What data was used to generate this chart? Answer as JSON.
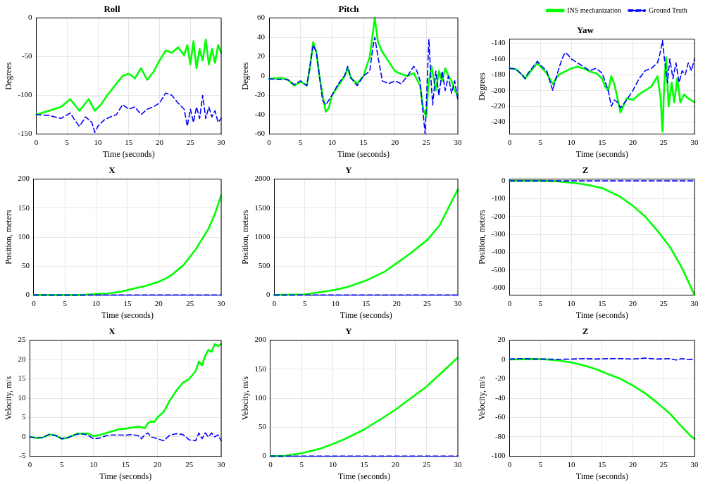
{
  "chart_data": [
    {
      "type": "line",
      "title": "Roll",
      "xlabel": "Time (seconds)",
      "ylabel": "Degrees",
      "xlim": [
        0,
        30
      ],
      "xticks": [
        0,
        5,
        10,
        15,
        20,
        25,
        30
      ],
      "ylim": [
        -150,
        0
      ],
      "yticks": [
        -150,
        -100,
        -50,
        0
      ],
      "grid": true,
      "legend": false,
      "series": [
        {
          "color": "#00ff00",
          "line_style": "solid",
          "x": [
            0,
            4,
            5.5,
            6,
            7,
            8,
            8.5,
            9.5,
            10.5,
            11.5,
            12.5,
            13,
            14,
            15,
            16,
            17,
            18,
            19,
            20,
            21,
            22,
            23,
            24,
            24.5,
            25,
            25.5,
            26,
            26.5,
            27,
            27.5,
            28,
            28.5,
            29,
            29.5,
            30
          ],
          "values": [
            -125,
            -115,
            -105,
            -110,
            -120,
            -110,
            -105,
            -120,
            -112,
            -100,
            -90,
            -85,
            -75,
            -72,
            -78,
            -65,
            -80,
            -70,
            -55,
            -42,
            -45,
            -38,
            -48,
            -35,
            -60,
            -30,
            -65,
            -40,
            -55,
            -28,
            -60,
            -40,
            -58,
            -35,
            -45
          ]
        },
        {
          "color": "#0000ff",
          "line_style": "dashed",
          "x": [
            0,
            2,
            4,
            5.5,
            6.5,
            7,
            8,
            9,
            9.5,
            10,
            11,
            12,
            13,
            14,
            15,
            16,
            17,
            18,
            19,
            20,
            21,
            22,
            23,
            24,
            24.5,
            25,
            25.5,
            26,
            26.5,
            27,
            27.5,
            28,
            28.5,
            29,
            29.5,
            30
          ],
          "values": [
            -125,
            -126,
            -130,
            -123,
            -135,
            -140,
            -128,
            -135,
            -148,
            -140,
            -132,
            -128,
            -125,
            -112,
            -118,
            -115,
            -125,
            -118,
            -115,
            -110,
            -97,
            -100,
            -110,
            -118,
            -140,
            -118,
            -135,
            -115,
            -130,
            -100,
            -130,
            -115,
            -128,
            -120,
            -135,
            -130
          ]
        }
      ]
    },
    {
      "type": "line",
      "title": "Pitch",
      "xlabel": "Time (seconds)",
      "ylabel": "Degrees",
      "xlim": [
        0,
        30
      ],
      "xticks": [
        0,
        5,
        10,
        15,
        20,
        25,
        30
      ],
      "ylim": [
        -60,
        60
      ],
      "yticks": [
        -60,
        -40,
        -20,
        0,
        20,
        40,
        60
      ],
      "grid": true,
      "legend": false,
      "series": [
        {
          "color": "#00ff00",
          "line_style": "solid",
          "x": [
            0,
            2,
            3,
            4,
            5,
            6,
            6.5,
            7,
            7.5,
            8,
            8.5,
            9,
            9.5,
            10,
            11,
            12,
            12.5,
            13,
            14,
            15,
            16,
            16.5,
            16.8,
            17.3,
            18,
            19,
            20,
            21,
            22,
            23,
            24,
            24.5,
            25,
            25.3,
            25.8,
            26.5,
            27,
            27.5,
            28,
            28.5,
            29,
            29.5,
            30
          ],
          "values": [
            -3,
            -2,
            -4,
            -10,
            -6,
            -10,
            10,
            35,
            25,
            0,
            -20,
            -37,
            -33,
            -20,
            -10,
            0,
            8,
            -2,
            -8,
            0,
            20,
            45,
            60,
            35,
            25,
            15,
            5,
            2,
            0,
            3,
            -10,
            -35,
            -42,
            -10,
            10,
            -15,
            5,
            -5,
            8,
            0,
            -5,
            -15,
            -20
          ]
        },
        {
          "color": "#0000ff",
          "line_style": "dashed",
          "x": [
            0,
            3,
            4,
            5,
            6,
            6.5,
            7,
            7.5,
            8,
            8.5,
            9,
            10,
            11,
            12,
            12.5,
            13,
            14,
            15,
            16,
            16.5,
            16.8,
            17.3,
            18,
            19,
            20,
            21,
            22,
            23,
            23.5,
            24,
            24.5,
            24.8,
            25.1,
            25.4,
            25.7,
            26,
            26.5,
            27,
            27.5,
            28,
            28.5,
            29,
            29.5,
            30
          ],
          "values": [
            -3,
            -4,
            -9,
            -5,
            -10,
            10,
            32,
            25,
            0,
            -25,
            -30,
            -20,
            -8,
            0,
            10,
            -2,
            -10,
            0,
            5,
            30,
            40,
            20,
            -5,
            -8,
            -5,
            -8,
            0,
            10,
            5,
            -5,
            -40,
            -60,
            -10,
            38,
            0,
            -30,
            5,
            -20,
            5,
            -15,
            0,
            -18,
            -5,
            -25
          ]
        }
      ]
    },
    {
      "type": "line",
      "title": "Yaw",
      "xlabel": "Time (seconds)",
      "ylabel": "Degrees",
      "xlim": [
        0,
        30
      ],
      "xticks": [
        0,
        5,
        10,
        15,
        20,
        25,
        30
      ],
      "ylim": [
        -255,
        -135
      ],
      "yticks": [
        -240,
        -220,
        -200,
        -180,
        -160,
        -140
      ],
      "grid": true,
      "legend": "top right",
      "series": [
        {
          "name": "INS mechanization",
          "color": "#00ff00",
          "line_style": "solid",
          "x": [
            0,
            1,
            2,
            2.5,
            3,
            4,
            4.5,
            5,
            6,
            7,
            7.5,
            8,
            9,
            10,
            11,
            12,
            13,
            14,
            15,
            15.5,
            16,
            16.5,
            17,
            17.5,
            18,
            19,
            20,
            21,
            22,
            23,
            24,
            24.5,
            24.8,
            25.1,
            25.4,
            25.8,
            26.3,
            26.7,
            27.2,
            27.7,
            28.3,
            29,
            30
          ],
          "values": [
            -172,
            -173,
            -180,
            -185,
            -180,
            -170,
            -165,
            -170,
            -178,
            -192,
            -185,
            -180,
            -176,
            -172,
            -170,
            -172,
            -176,
            -178,
            -185,
            -195,
            -200,
            -182,
            -192,
            -210,
            -228,
            -210,
            -212,
            -205,
            -200,
            -195,
            -182,
            -210,
            -252,
            -190,
            -158,
            -220,
            -190,
            -215,
            -185,
            -215,
            -205,
            -210,
            -215
          ]
        },
        {
          "name": "Ground Truth",
          "color": "#0000ff",
          "line_style": "dashed",
          "x": [
            0,
            1,
            2,
            2.5,
            3,
            4,
            4.5,
            5,
            6,
            7,
            7.5,
            8,
            8.5,
            9,
            9.5,
            10,
            11,
            12,
            13,
            14,
            15,
            16,
            16.5,
            17,
            17.5,
            18,
            19,
            20,
            21,
            22,
            23,
            24,
            24.5,
            24.8,
            25.2,
            25.6,
            26,
            26.5,
            27,
            27.5,
            28,
            28.5,
            29,
            29.5,
            30
          ],
          "values": [
            -172,
            -173,
            -180,
            -185,
            -178,
            -168,
            -163,
            -168,
            -175,
            -200,
            -185,
            -172,
            -160,
            -152,
            -155,
            -160,
            -165,
            -170,
            -175,
            -172,
            -178,
            -200,
            -220,
            -212,
            -215,
            -222,
            -212,
            -200,
            -185,
            -175,
            -172,
            -165,
            -150,
            -137,
            -165,
            -190,
            -160,
            -185,
            -165,
            -190,
            -175,
            -180,
            -165,
            -175,
            -160
          ]
        }
      ]
    },
    {
      "type": "line",
      "title": "X",
      "xlabel": "Time (seconds)",
      "ylabel": "Position, meters",
      "xlim": [
        0,
        30
      ],
      "xticks": [
        0,
        5,
        10,
        15,
        20,
        25,
        30
      ],
      "ylim": [
        0,
        200
      ],
      "yticks": [
        0,
        50,
        100,
        150,
        200
      ],
      "grid": true,
      "legend": false,
      "series": [
        {
          "color": "#00ff00",
          "line_style": "solid",
          "x": [
            0,
            5,
            8,
            10,
            12,
            14,
            16,
            18,
            20,
            21,
            22,
            24,
            26,
            28,
            29,
            30
          ],
          "values": [
            0,
            0,
            0,
            2,
            3,
            6,
            11,
            16,
            23,
            28,
            34,
            52,
            80,
            115,
            140,
            172
          ]
        },
        {
          "color": "#0000ff",
          "line_style": "dashed",
          "x": [
            0,
            10,
            20,
            30
          ],
          "values": [
            0,
            0,
            0,
            0
          ]
        }
      ]
    },
    {
      "type": "line",
      "title": "Y",
      "xlabel": "Time (seconds)",
      "ylabel": "Position, meters",
      "xlim": [
        0,
        30
      ],
      "xticks": [
        0,
        5,
        10,
        15,
        20,
        25,
        30
      ],
      "ylim": [
        0,
        2000
      ],
      "yticks": [
        0,
        500,
        1000,
        1500,
        2000
      ],
      "grid": true,
      "legend": false,
      "series": [
        {
          "color": "#00ff00",
          "line_style": "solid",
          "x": [
            0,
            5,
            10,
            12,
            15,
            18,
            20,
            22,
            25,
            27,
            30
          ],
          "values": [
            0,
            10,
            90,
            140,
            250,
            400,
            550,
            700,
            950,
            1200,
            1820
          ]
        },
        {
          "color": "#0000ff",
          "line_style": "dashed",
          "x": [
            0,
            10,
            20,
            30
          ],
          "values": [
            0,
            0,
            0,
            0
          ]
        }
      ]
    },
    {
      "type": "line",
      "title": "Z",
      "xlabel": "Time (seconds)",
      "ylabel": "Position, meters",
      "xlim": [
        0,
        30
      ],
      "xticks": [
        0,
        5,
        10,
        15,
        20,
        25,
        30
      ],
      "ylim": [
        -640,
        10
      ],
      "yticks": [
        -600,
        -500,
        -400,
        -300,
        -200,
        -100,
        0
      ],
      "grid": true,
      "legend": false,
      "series": [
        {
          "color": "#00ff00",
          "line_style": "solid",
          "x": [
            0,
            5,
            8,
            10,
            12,
            15,
            18,
            20,
            22,
            24,
            26,
            28,
            30
          ],
          "values": [
            0,
            0,
            -3,
            -10,
            -18,
            -40,
            -90,
            -140,
            -200,
            -280,
            -370,
            -490,
            -640
          ]
        },
        {
          "color": "#0000ff",
          "line_style": "dashed",
          "x": [
            0,
            10,
            20,
            30
          ],
          "values": [
            0,
            0,
            0,
            0
          ]
        }
      ]
    },
    {
      "type": "line",
      "title": "X",
      "xlabel": "Time (seconds)",
      "ylabel": "Velocity, m/s",
      "xlim": [
        0,
        30
      ],
      "xticks": [
        0,
        5,
        10,
        15,
        20,
        25,
        30
      ],
      "ylim": [
        -5,
        25
      ],
      "yticks": [
        -5,
        0,
        5,
        10,
        15,
        20,
        25
      ],
      "grid": true,
      "legend": false,
      "series": [
        {
          "color": "#00ff00",
          "line_style": "solid",
          "x": [
            0,
            1,
            2,
            3,
            4,
            5,
            6,
            7,
            7.5,
            8,
            9,
            10,
            11,
            12,
            13,
            14,
            15,
            16,
            17,
            17.5,
            18,
            18.5,
            19,
            19.5,
            20,
            21,
            22,
            23,
            24,
            25,
            26,
            26.5,
            27,
            27.5,
            28,
            28.5,
            29,
            29.5,
            30
          ],
          "values": [
            0,
            -0.3,
            -0.2,
            0.6,
            0.4,
            -0.5,
            -0.2,
            0.5,
            0.9,
            0.8,
            0.9,
            0.2,
            0.5,
            1,
            1.5,
            2,
            2.1,
            2.4,
            2.6,
            2.5,
            2.2,
            3.5,
            4,
            3.8,
            5,
            6.5,
            9.5,
            12,
            14,
            15,
            17,
            19.5,
            18.5,
            21,
            22.5,
            22,
            24,
            23.5,
            24
          ]
        },
        {
          "color": "#0000ff",
          "line_style": "dashed",
          "x": [
            0,
            1,
            2,
            3,
            4,
            5,
            6,
            7,
            8,
            9,
            10,
            11,
            12,
            13,
            14,
            15,
            16,
            17,
            17.5,
            18,
            18.5,
            19,
            20,
            21,
            22,
            23,
            24,
            25,
            26,
            26.5,
            27,
            27.5,
            28,
            28.5,
            29,
            29.5,
            30
          ],
          "values": [
            0,
            -0.3,
            -0.2,
            0.6,
            0.4,
            -0.5,
            -0.2,
            0.5,
            0.8,
            0.5,
            -0.5,
            -0.3,
            0.3,
            0.5,
            0.5,
            0.4,
            0.6,
            0.3,
            -0.5,
            0.5,
            1,
            0,
            -0.5,
            -1,
            0.5,
            0.8,
            0.6,
            -0.8,
            -1,
            1,
            -0.5,
            1,
            0,
            1,
            0,
            0.5,
            -1
          ]
        }
      ]
    },
    {
      "type": "line",
      "title": "Y",
      "xlabel": "Time (seconds)",
      "ylabel": "Velocity, m/s",
      "xlim": [
        0,
        30
      ],
      "xticks": [
        0,
        5,
        10,
        15,
        20,
        25,
        30
      ],
      "ylim": [
        0,
        200
      ],
      "yticks": [
        0,
        50,
        100,
        150,
        200
      ],
      "grid": true,
      "legend": false,
      "series": [
        {
          "color": "#00ff00",
          "line_style": "solid",
          "x": [
            0,
            2,
            5,
            8,
            10,
            12,
            15,
            18,
            20,
            22,
            25,
            28,
            30
          ],
          "values": [
            0,
            0,
            5,
            13,
            21,
            30,
            46,
            66,
            80,
            96,
            120,
            150,
            170
          ]
        },
        {
          "color": "#0000ff",
          "line_style": "dashed",
          "x": [
            0,
            10,
            20,
            30
          ],
          "values": [
            0,
            0,
            0,
            0
          ]
        }
      ]
    },
    {
      "type": "line",
      "title": "Z",
      "xlabel": "Time (seconds)",
      "ylabel": "Velocity, m/s",
      "xlim": [
        0,
        30
      ],
      "xticks": [
        0,
        5,
        10,
        15,
        20,
        25,
        30
      ],
      "ylim": [
        -100,
        20
      ],
      "yticks": [
        -100,
        -80,
        -60,
        -40,
        -20,
        0,
        20
      ],
      "grid": true,
      "legend": false,
      "series": [
        {
          "color": "#00ff00",
          "line_style": "solid",
          "x": [
            0,
            4,
            6,
            8,
            10,
            12,
            14,
            16,
            18,
            20,
            22,
            24,
            26,
            28,
            29.5,
            30
          ],
          "values": [
            0,
            0.5,
            0,
            -1,
            -3,
            -6,
            -10,
            -15,
            -20,
            -27,
            -35,
            -45,
            -56,
            -70,
            -80,
            -82
          ]
        },
        {
          "color": "#0000ff",
          "line_style": "dashed",
          "x": [
            0,
            2,
            4,
            6,
            8,
            10,
            12,
            14,
            16,
            18,
            20,
            22,
            24,
            26,
            27,
            28,
            29,
            30
          ],
          "values": [
            0.5,
            1,
            0.5,
            0.5,
            0.2,
            0.5,
            1,
            0.5,
            1,
            1,
            0.5,
            1.5,
            0.5,
            1,
            -0.5,
            1,
            0,
            0.5
          ]
        }
      ]
    }
  ]
}
